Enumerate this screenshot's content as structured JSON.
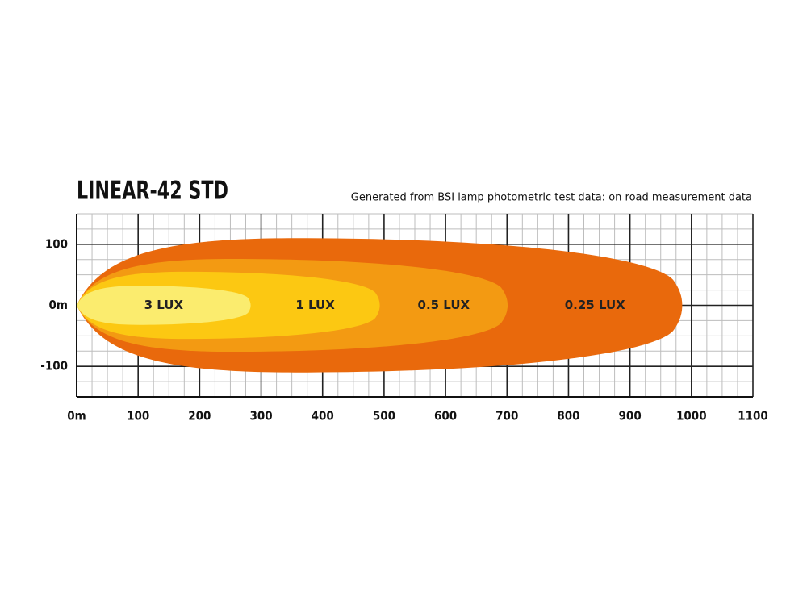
{
  "chart_data": {
    "type": "beam",
    "title": "LINEAR-42 STD",
    "subtitle": "Generated from BSI lamp photometric test data: on road measurement data",
    "xlim": [
      0,
      1100
    ],
    "xticks": [
      {
        "value": 0,
        "label": "0m"
      },
      100,
      200,
      300,
      400,
      500,
      600,
      700,
      800,
      900,
      1000,
      1100
    ],
    "ylim": [
      -150,
      150
    ],
    "yticks": [
      100,
      {
        "value": 0,
        "label": "0m"
      },
      -100
    ],
    "grid": true,
    "series": [
      {
        "name": "0.25 LUX",
        "color": "#e9690c",
        "reach": 985,
        "half_width": 110
      },
      {
        "name": "0.5 LUX",
        "color": "#f39a12",
        "reach": 701,
        "half_width": 76
      },
      {
        "name": "1 LUX",
        "color": "#fcc812",
        "reach": 493,
        "half_width": 55
      },
      {
        "name": "3 LUX",
        "color": "#fbec6e",
        "reach": 283,
        "half_width": 32
      }
    ]
  }
}
